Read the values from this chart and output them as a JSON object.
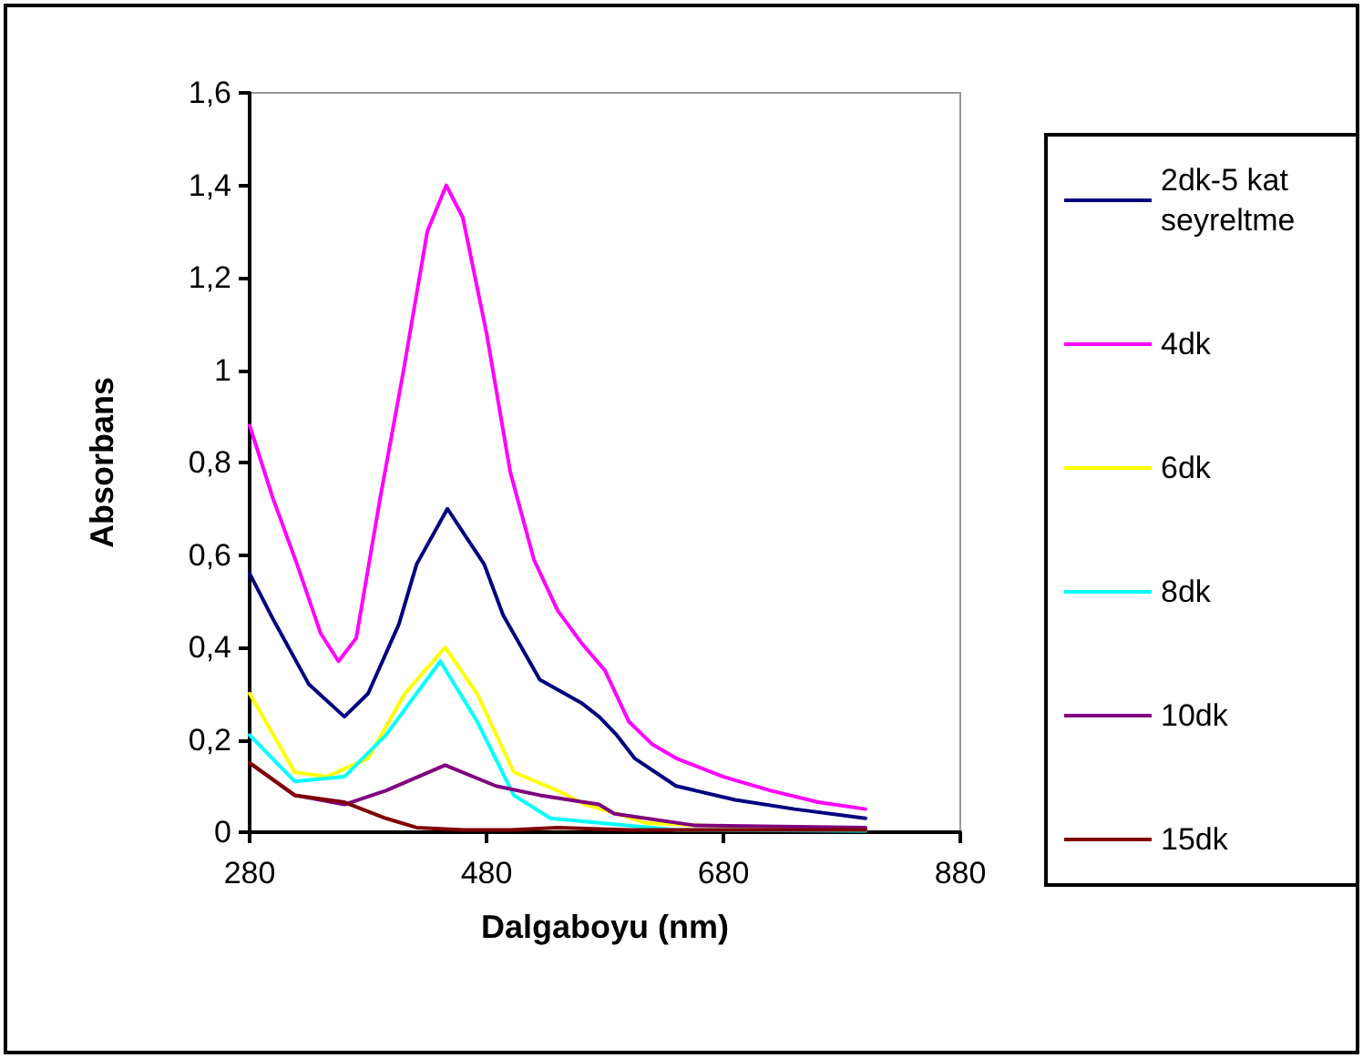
{
  "chart_data": {
    "type": "line",
    "xlabel": "Dalgaboyu (nm)",
    "ylabel": "Absorbans",
    "xlim": [
      280,
      880
    ],
    "xticks": [
      280,
      480,
      680,
      880
    ],
    "ylim": [
      0,
      1.6
    ],
    "yticks": [
      0,
      {
        "value": 0.2,
        "label": "0,2"
      },
      {
        "value": 0.4,
        "label": "0,4"
      },
      {
        "value": 0.6,
        "label": "0,6"
      },
      {
        "value": 0.8,
        "label": "0,8"
      },
      1,
      {
        "value": 1.2,
        "label": "1,2"
      },
      {
        "value": 1.4,
        "label": "1,4"
      },
      {
        "value": 1.6,
        "label": "1,6"
      }
    ],
    "grid": false,
    "legend": "right",
    "marker": "none",
    "line_style": "solid",
    "series": [
      {
        "name": "2dk-5 kat seyreltme",
        "color": "#000080",
        "x": [
          280,
          300,
          330,
          360,
          380,
          406,
          421,
          447,
          478,
          494,
          525,
          560,
          575,
          590,
          605,
          640,
          690,
          740,
          800
        ],
        "values": [
          0.56,
          0.46,
          0.32,
          0.25,
          0.3,
          0.45,
          0.58,
          0.7,
          0.58,
          0.47,
          0.33,
          0.28,
          0.25,
          0.21,
          0.16,
          0.1,
          0.07,
          0.05,
          0.03
        ]
      },
      {
        "name": "4dk",
        "color": "#ff00ff",
        "x": [
          280,
          300,
          320,
          340,
          355,
          370,
          390,
          410,
          430,
          446,
          460,
          480,
          500,
          520,
          540,
          560,
          580,
          600,
          620,
          640,
          680,
          720,
          760,
          800
        ],
        "values": [
          0.88,
          0.72,
          0.58,
          0.43,
          0.37,
          0.42,
          0.72,
          1.0,
          1.3,
          1.4,
          1.33,
          1.08,
          0.78,
          0.59,
          0.48,
          0.41,
          0.35,
          0.24,
          0.19,
          0.16,
          0.12,
          0.09,
          0.065,
          0.05
        ]
      },
      {
        "name": "6dk",
        "color": "#ffff00",
        "x": [
          280,
          318,
          345,
          380,
          411,
          445,
          472,
          503,
          540,
          563,
          590,
          614,
          700,
          800
        ],
        "values": [
          0.3,
          0.13,
          0.12,
          0.16,
          0.3,
          0.4,
          0.3,
          0.13,
          0.09,
          0.06,
          0.04,
          0.02,
          0.01,
          0.005
        ]
      },
      {
        "name": "8dk",
        "color": "#00ffff",
        "x": [
          280,
          318,
          360,
          395,
          441,
          472,
          503,
          534,
          575,
          640,
          800
        ],
        "values": [
          0.21,
          0.11,
          0.12,
          0.21,
          0.37,
          0.24,
          0.08,
          0.03,
          0.02,
          0.005,
          0.003
        ]
      },
      {
        "name": "10dk",
        "color": "#800080",
        "x": [
          280,
          318,
          360,
          395,
          445,
          488,
          525,
          575,
          588,
          655,
          800
        ],
        "values": [
          0.15,
          0.08,
          0.06,
          0.09,
          0.145,
          0.1,
          0.08,
          0.06,
          0.04,
          0.015,
          0.01
        ]
      },
      {
        "name": "15dk",
        "color": "#800000",
        "x": [
          280,
          318,
          360,
          395,
          421,
          460,
          500,
          540,
          600,
          700,
          800
        ],
        "values": [
          0.15,
          0.08,
          0.065,
          0.03,
          0.01,
          0.005,
          0.005,
          0.01,
          0.005,
          0.005,
          0.005
        ]
      }
    ]
  }
}
